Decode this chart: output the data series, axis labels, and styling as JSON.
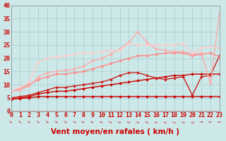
{
  "xlabel": "Vent moyen/en rafales ( km/h )",
  "xlim": [
    0,
    23
  ],
  "ylim": [
    0,
    40
  ],
  "xticks": [
    0,
    1,
    2,
    3,
    4,
    5,
    6,
    7,
    8,
    9,
    10,
    11,
    12,
    13,
    14,
    15,
    16,
    17,
    18,
    19,
    20,
    21,
    22,
    23
  ],
  "yticks": [
    0,
    5,
    10,
    15,
    20,
    25,
    30,
    35,
    40
  ],
  "background_color": "#cce8e8",
  "grid_color": "#aacccc",
  "lines": [
    {
      "x": [
        0,
        1,
        2,
        3,
        4,
        5,
        6,
        7,
        8,
        9,
        10,
        11,
        12,
        13,
        14,
        15,
        16,
        17,
        18,
        19,
        20,
        21,
        22,
        23
      ],
      "y": [
        4.5,
        4.8,
        5.0,
        5.5,
        5.5,
        5.5,
        5.5,
        5.5,
        5.5,
        5.5,
        5.5,
        5.5,
        5.5,
        5.5,
        5.5,
        5.5,
        5.5,
        5.5,
        5.5,
        5.5,
        5.5,
        5.5,
        5.5,
        5.5
      ],
      "color": "#cc0000",
      "lw": 1.0,
      "marker": "D",
      "ms": 2.0
    },
    {
      "x": [
        0,
        1,
        2,
        3,
        4,
        5,
        6,
        7,
        8,
        9,
        10,
        11,
        12,
        13,
        14,
        15,
        16,
        17,
        18,
        19,
        20,
        21,
        22,
        23
      ],
      "y": [
        4.5,
        5.0,
        5.5,
        6.5,
        7.0,
        7.5,
        7.5,
        8.0,
        8.5,
        9.0,
        9.5,
        10.0,
        10.5,
        11.0,
        11.5,
        12.0,
        12.5,
        13.0,
        13.5,
        13.5,
        14.0,
        14.0,
        14.0,
        14.0
      ],
      "color": "#cc0000",
      "lw": 1.0,
      "marker": "D",
      "ms": 2.0
    },
    {
      "x": [
        0,
        1,
        2,
        3,
        4,
        5,
        6,
        7,
        8,
        9,
        10,
        11,
        12,
        13,
        14,
        15,
        16,
        17,
        18,
        19,
        20,
        21,
        22,
        23
      ],
      "y": [
        5.0,
        5.5,
        6.0,
        7.0,
        8.0,
        9.0,
        9.0,
        9.5,
        10.0,
        10.5,
        11.0,
        12.0,
        13.5,
        14.5,
        14.5,
        13.5,
        12.5,
        12.0,
        12.5,
        13.0,
        6.0,
        13.0,
        13.5,
        21.0
      ],
      "color": "#cc2222",
      "lw": 1.0,
      "marker": "D",
      "ms": 2.0
    },
    {
      "x": [
        0,
        1,
        2,
        3,
        4,
        5,
        6,
        7,
        8,
        9,
        10,
        11,
        12,
        13,
        14,
        15,
        16,
        17,
        18,
        19,
        20,
        21,
        22,
        23
      ],
      "y": [
        7.5,
        8.5,
        10.0,
        12.0,
        13.0,
        14.0,
        14.0,
        14.5,
        15.0,
        16.0,
        17.0,
        18.0,
        19.0,
        20.0,
        21.0,
        21.0,
        21.5,
        22.0,
        22.0,
        22.0,
        21.0,
        21.5,
        22.0,
        20.5
      ],
      "color": "#ff8888",
      "lw": 1.0,
      "marker": "D",
      "ms": 2.0
    },
    {
      "x": [
        0,
        1,
        2,
        3,
        4,
        5,
        6,
        7,
        8,
        9,
        10,
        11,
        12,
        13,
        14,
        15,
        16,
        17,
        18,
        19,
        20,
        21,
        22,
        23
      ],
      "y": [
        7.5,
        8.0,
        9.5,
        13.0,
        14.5,
        15.0,
        15.5,
        16.0,
        17.0,
        19.0,
        20.0,
        21.5,
        23.5,
        26.0,
        30.0,
        26.0,
        23.5,
        23.0,
        22.5,
        22.5,
        21.5,
        22.0,
        10.5,
        37.0
      ],
      "color": "#ffaaaa",
      "lw": 1.0,
      "marker": "D",
      "ms": 2.0
    },
    {
      "x": [
        0,
        1,
        2,
        3,
        4,
        5,
        6,
        7,
        8,
        9,
        10,
        11,
        12,
        13,
        14,
        15,
        16,
        17,
        18,
        19,
        20,
        21,
        22,
        23
      ],
      "y": [
        7.5,
        9.0,
        11.0,
        18.5,
        20.0,
        20.5,
        21.0,
        21.5,
        22.0,
        22.0,
        22.5,
        23.0,
        23.0,
        25.5,
        25.0,
        25.0,
        25.0,
        25.0,
        25.0,
        25.5,
        22.0,
        24.0,
        24.5,
        24.0
      ],
      "color": "#ffcccc",
      "lw": 1.0,
      "marker": "D",
      "ms": 2.0
    }
  ],
  "xlabel_color": "#cc0000",
  "xlabel_fontsize": 7.5,
  "tick_color": "#cc0000",
  "tick_fontsize": 6.0,
  "axisline_color": "#cc0000"
}
